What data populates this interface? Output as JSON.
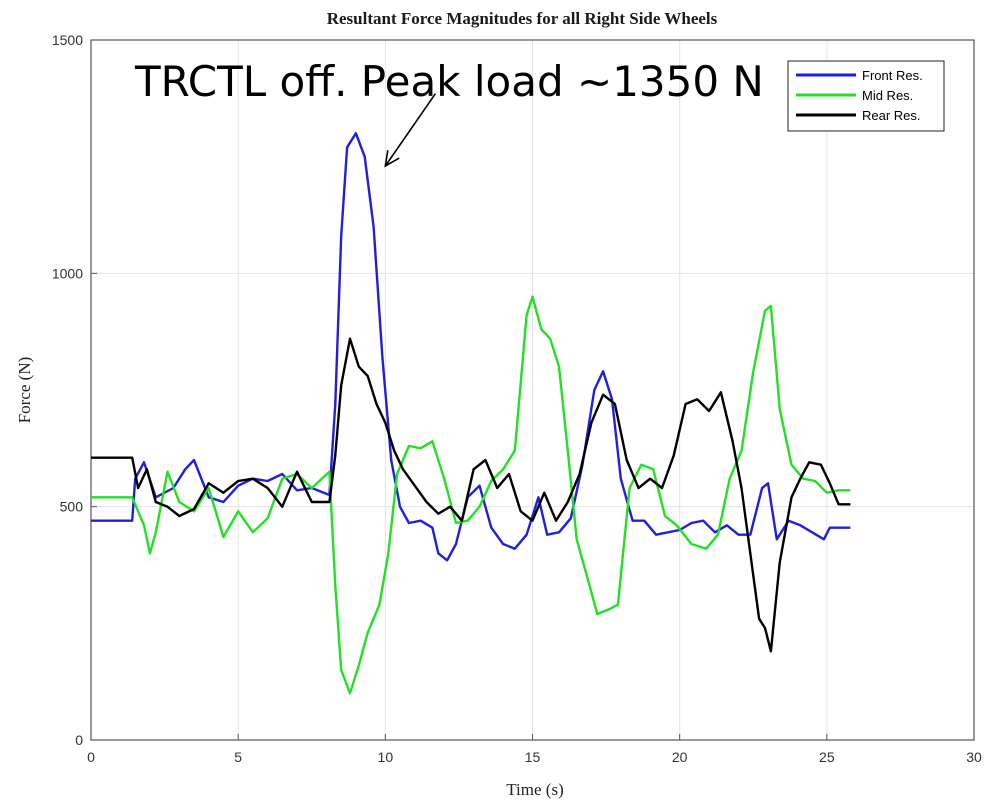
{
  "chart_data": {
    "type": "line",
    "title": "Resultant Force Magnitudes for all Right Side Wheels",
    "xlabel": "Time (s)",
    "ylabel": "Force (N)",
    "xlim": [
      0,
      30
    ],
    "ylim": [
      0,
      1500
    ],
    "xticks": [
      0,
      5,
      10,
      15,
      20,
      25,
      30
    ],
    "yticks": [
      0,
      500,
      1000,
      1500
    ],
    "grid": true,
    "legend_position": "top-right",
    "annotation": {
      "text": "TRCTL off. Peak load ~1350 N",
      "arrow_tip": [
        10.0,
        1230
      ],
      "arrow_tail": [
        11.7,
        1385
      ]
    },
    "series": [
      {
        "name": "Front Res.",
        "color": "#1f1fe0",
        "points": [
          [
            0,
            470
          ],
          [
            1.4,
            470
          ],
          [
            1.5,
            560
          ],
          [
            1.8,
            595
          ],
          [
            2.2,
            520
          ],
          [
            2.8,
            540
          ],
          [
            3.2,
            580
          ],
          [
            3.5,
            600
          ],
          [
            4,
            520
          ],
          [
            4.5,
            510
          ],
          [
            5,
            545
          ],
          [
            5.5,
            560
          ],
          [
            6,
            555
          ],
          [
            6.5,
            570
          ],
          [
            7,
            535
          ],
          [
            7.5,
            540
          ],
          [
            8.1,
            525
          ],
          [
            8.3,
            720
          ],
          [
            8.5,
            1080
          ],
          [
            8.7,
            1270
          ],
          [
            9,
            1300
          ],
          [
            9.3,
            1250
          ],
          [
            9.6,
            1100
          ],
          [
            9.9,
            820
          ],
          [
            10.2,
            600
          ],
          [
            10.5,
            500
          ],
          [
            10.8,
            465
          ],
          [
            11.2,
            470
          ],
          [
            11.6,
            455
          ],
          [
            11.8,
            400
          ],
          [
            12.1,
            385
          ],
          [
            12.4,
            420
          ],
          [
            12.8,
            520
          ],
          [
            13.2,
            545
          ],
          [
            13.6,
            455
          ],
          [
            14,
            420
          ],
          [
            14.4,
            410
          ],
          [
            14.8,
            440
          ],
          [
            15.2,
            520
          ],
          [
            15.5,
            440
          ],
          [
            15.9,
            445
          ],
          [
            16.3,
            475
          ],
          [
            16.7,
            590
          ],
          [
            17.1,
            750
          ],
          [
            17.4,
            790
          ],
          [
            17.7,
            730
          ],
          [
            18.0,
            560
          ],
          [
            18.4,
            470
          ],
          [
            18.8,
            470
          ],
          [
            19.2,
            440
          ],
          [
            19.6,
            445
          ],
          [
            20,
            450
          ],
          [
            20.4,
            465
          ],
          [
            20.8,
            470
          ],
          [
            21.2,
            445
          ],
          [
            21.6,
            460
          ],
          [
            22,
            440
          ],
          [
            22.4,
            440
          ],
          [
            22.8,
            540
          ],
          [
            23.0,
            550
          ],
          [
            23.3,
            430
          ],
          [
            23.7,
            470
          ],
          [
            24.1,
            460
          ],
          [
            24.5,
            445
          ],
          [
            24.9,
            430
          ],
          [
            25.1,
            455
          ],
          [
            25.8,
            455
          ]
        ]
      },
      {
        "name": "Mid Res.",
        "color": "#22e022",
        "points": [
          [
            0,
            520
          ],
          [
            1.4,
            520
          ],
          [
            1.6,
            490
          ],
          [
            1.8,
            460
          ],
          [
            2.0,
            400
          ],
          [
            2.2,
            445
          ],
          [
            2.6,
            575
          ],
          [
            3.0,
            510
          ],
          [
            3.5,
            490
          ],
          [
            4,
            540
          ],
          [
            4.5,
            435
          ],
          [
            5,
            490
          ],
          [
            5.5,
            445
          ],
          [
            6,
            475
          ],
          [
            6.5,
            560
          ],
          [
            7,
            570
          ],
          [
            7.5,
            540
          ],
          [
            8.1,
            575
          ],
          [
            8.3,
            330
          ],
          [
            8.5,
            150
          ],
          [
            8.8,
            100
          ],
          [
            9.1,
            160
          ],
          [
            9.4,
            230
          ],
          [
            9.8,
            290
          ],
          [
            10.1,
            400
          ],
          [
            10.4,
            570
          ],
          [
            10.8,
            630
          ],
          [
            11.2,
            625
          ],
          [
            11.6,
            640
          ],
          [
            12.0,
            560
          ],
          [
            12.4,
            465
          ],
          [
            12.8,
            470
          ],
          [
            13.2,
            500
          ],
          [
            13.6,
            555
          ],
          [
            14,
            580
          ],
          [
            14.4,
            620
          ],
          [
            14.8,
            910
          ],
          [
            15.0,
            950
          ],
          [
            15.3,
            880
          ],
          [
            15.6,
            860
          ],
          [
            15.9,
            800
          ],
          [
            16.2,
            620
          ],
          [
            16.5,
            430
          ],
          [
            16.9,
            340
          ],
          [
            17.2,
            270
          ],
          [
            17.6,
            280
          ],
          [
            17.9,
            290
          ],
          [
            18.3,
            540
          ],
          [
            18.7,
            590
          ],
          [
            19.1,
            580
          ],
          [
            19.5,
            480
          ],
          [
            19.9,
            460
          ],
          [
            20.4,
            420
          ],
          [
            20.9,
            410
          ],
          [
            21.3,
            440
          ],
          [
            21.7,
            560
          ],
          [
            22.1,
            620
          ],
          [
            22.5,
            790
          ],
          [
            22.9,
            920
          ],
          [
            23.1,
            930
          ],
          [
            23.4,
            710
          ],
          [
            23.8,
            590
          ],
          [
            24.2,
            560
          ],
          [
            24.6,
            555
          ],
          [
            25.0,
            530
          ],
          [
            25.4,
            535
          ],
          [
            25.8,
            535
          ]
        ]
      },
      {
        "name": "Rear Res.",
        "color": "#000000",
        "points": [
          [
            0,
            605
          ],
          [
            1.4,
            605
          ],
          [
            1.6,
            540
          ],
          [
            1.9,
            580
          ],
          [
            2.2,
            510
          ],
          [
            2.6,
            500
          ],
          [
            3.0,
            480
          ],
          [
            3.5,
            495
          ],
          [
            4,
            550
          ],
          [
            4.5,
            530
          ],
          [
            5,
            555
          ],
          [
            5.5,
            560
          ],
          [
            6,
            540
          ],
          [
            6.5,
            500
          ],
          [
            7,
            575
          ],
          [
            7.5,
            510
          ],
          [
            8.1,
            510
          ],
          [
            8.3,
            610
          ],
          [
            8.5,
            760
          ],
          [
            8.8,
            860
          ],
          [
            9.1,
            800
          ],
          [
            9.4,
            780
          ],
          [
            9.7,
            720
          ],
          [
            10.0,
            680
          ],
          [
            10.3,
            620
          ],
          [
            10.6,
            580
          ],
          [
            11.0,
            545
          ],
          [
            11.4,
            510
          ],
          [
            11.8,
            485
          ],
          [
            12.2,
            500
          ],
          [
            12.6,
            470
          ],
          [
            13.0,
            580
          ],
          [
            13.4,
            600
          ],
          [
            13.8,
            540
          ],
          [
            14.2,
            570
          ],
          [
            14.6,
            490
          ],
          [
            15.0,
            470
          ],
          [
            15.4,
            530
          ],
          [
            15.8,
            470
          ],
          [
            16.2,
            510
          ],
          [
            16.6,
            570
          ],
          [
            17.0,
            680
          ],
          [
            17.4,
            740
          ],
          [
            17.8,
            720
          ],
          [
            18.2,
            600
          ],
          [
            18.6,
            540
          ],
          [
            19.0,
            560
          ],
          [
            19.4,
            540
          ],
          [
            19.8,
            610
          ],
          [
            20.2,
            720
          ],
          [
            20.6,
            730
          ],
          [
            21.0,
            705
          ],
          [
            21.4,
            745
          ],
          [
            21.8,
            640
          ],
          [
            22.1,
            540
          ],
          [
            22.4,
            400
          ],
          [
            22.7,
            260
          ],
          [
            22.9,
            240
          ],
          [
            23.1,
            190
          ],
          [
            23.4,
            380
          ],
          [
            23.8,
            520
          ],
          [
            24.1,
            560
          ],
          [
            24.4,
            595
          ],
          [
            24.8,
            590
          ],
          [
            25.1,
            550
          ],
          [
            25.4,
            505
          ],
          [
            25.8,
            505
          ]
        ]
      }
    ]
  }
}
